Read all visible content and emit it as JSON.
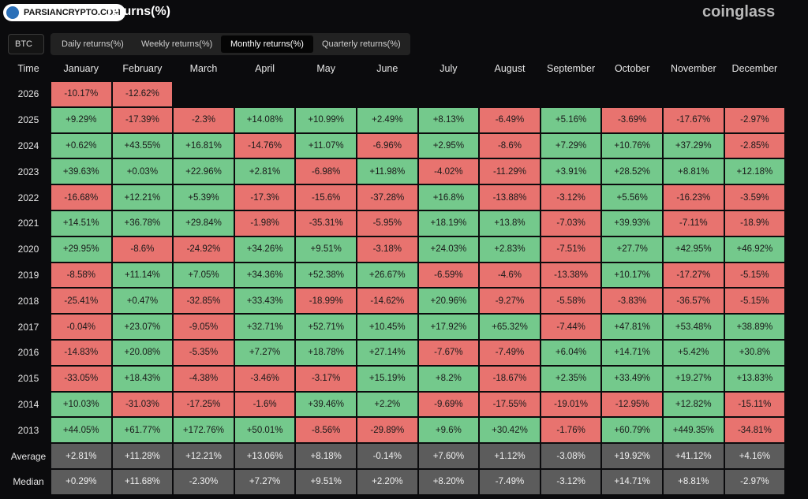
{
  "watermark": "PARSIANCRYPTO.COM",
  "header": {
    "title": "returns(%)",
    "brand": "coinglass"
  },
  "selector": "BTC",
  "tabs": [
    "Daily returns(%)",
    "Weekly returns(%)",
    "Monthly returns(%)",
    "Quarterly returns(%)"
  ],
  "active_tab": 2,
  "table": {
    "columns": [
      "Time",
      "January",
      "February",
      "March",
      "April",
      "May",
      "June",
      "July",
      "August",
      "September",
      "October",
      "November",
      "December"
    ],
    "rows": [
      [
        "2026",
        "-10.17%",
        "-12.62%"
      ],
      [
        "2025",
        "+9.29%",
        "-17.39%",
        "-2.3%",
        "+14.08%",
        "+10.99%",
        "+2.49%",
        "+8.13%",
        "-6.49%",
        "+5.16%",
        "-3.69%",
        "-17.67%",
        "-2.97%"
      ],
      [
        "2024",
        "+0.62%",
        "+43.55%",
        "+16.81%",
        "-14.76%",
        "+11.07%",
        "-6.96%",
        "+2.95%",
        "-8.6%",
        "+7.29%",
        "+10.76%",
        "+37.29%",
        "-2.85%"
      ],
      [
        "2023",
        "+39.63%",
        "+0.03%",
        "+22.96%",
        "+2.81%",
        "-6.98%",
        "+11.98%",
        "-4.02%",
        "-11.29%",
        "+3.91%",
        "+28.52%",
        "+8.81%",
        "+12.18%"
      ],
      [
        "2022",
        "-16.68%",
        "+12.21%",
        "+5.39%",
        "-17.3%",
        "-15.6%",
        "-37.28%",
        "+16.8%",
        "-13.88%",
        "-3.12%",
        "+5.56%",
        "-16.23%",
        "-3.59%"
      ],
      [
        "2021",
        "+14.51%",
        "+36.78%",
        "+29.84%",
        "-1.98%",
        "-35.31%",
        "-5.95%",
        "+18.19%",
        "+13.8%",
        "-7.03%",
        "+39.93%",
        "-7.11%",
        "-18.9%"
      ],
      [
        "2020",
        "+29.95%",
        "-8.6%",
        "-24.92%",
        "+34.26%",
        "+9.51%",
        "-3.18%",
        "+24.03%",
        "+2.83%",
        "-7.51%",
        "+27.7%",
        "+42.95%",
        "+46.92%"
      ],
      [
        "2019",
        "-8.58%",
        "+11.14%",
        "+7.05%",
        "+34.36%",
        "+52.38%",
        "+26.67%",
        "-6.59%",
        "-4.6%",
        "-13.38%",
        "+10.17%",
        "-17.27%",
        "-5.15%"
      ],
      [
        "2018",
        "-25.41%",
        "+0.47%",
        "-32.85%",
        "+33.43%",
        "-18.99%",
        "-14.62%",
        "+20.96%",
        "-9.27%",
        "-5.58%",
        "-3.83%",
        "-36.57%",
        "-5.15%"
      ],
      [
        "2017",
        "-0.04%",
        "+23.07%",
        "-9.05%",
        "+32.71%",
        "+52.71%",
        "+10.45%",
        "+17.92%",
        "+65.32%",
        "-7.44%",
        "+47.81%",
        "+53.48%",
        "+38.89%"
      ],
      [
        "2016",
        "-14.83%",
        "+20.08%",
        "-5.35%",
        "+7.27%",
        "+18.78%",
        "+27.14%",
        "-7.67%",
        "-7.49%",
        "+6.04%",
        "+14.71%",
        "+5.42%",
        "+30.8%"
      ],
      [
        "2015",
        "-33.05%",
        "+18.43%",
        "-4.38%",
        "-3.46%",
        "-3.17%",
        "+15.19%",
        "+8.2%",
        "-18.67%",
        "+2.35%",
        "+33.49%",
        "+19.27%",
        "+13.83%"
      ],
      [
        "2014",
        "+10.03%",
        "-31.03%",
        "-17.25%",
        "-1.6%",
        "+39.46%",
        "+2.2%",
        "-9.69%",
        "-17.55%",
        "-19.01%",
        "-12.95%",
        "+12.82%",
        "-15.11%"
      ],
      [
        "2013",
        "+44.05%",
        "+61.77%",
        "+172.76%",
        "+50.01%",
        "-8.56%",
        "-29.89%",
        "+9.6%",
        "+30.42%",
        "-1.76%",
        "+60.79%",
        "+449.35%",
        "-34.81%"
      ]
    ],
    "summary_rows": [
      [
        "Average",
        "+2.81%",
        "+11.28%",
        "+12.21%",
        "+13.06%",
        "+8.18%",
        "-0.14%",
        "+7.60%",
        "+1.12%",
        "-3.08%",
        "+19.92%",
        "+41.12%",
        "+4.16%"
      ],
      [
        "Median",
        "+0.29%",
        "+11.68%",
        "-2.30%",
        "+7.27%",
        "+9.51%",
        "+2.20%",
        "+8.20%",
        "-7.49%",
        "-3.12%",
        "+14.71%",
        "+8.81%",
        "-2.97%"
      ]
    ]
  }
}
